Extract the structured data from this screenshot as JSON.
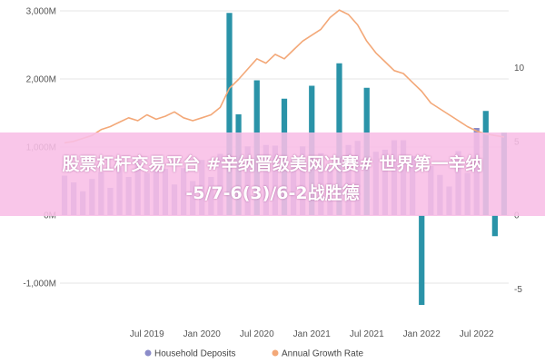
{
  "chart_data": {
    "type": "bar",
    "x": [
      "2018-10",
      "2018-11",
      "2018-12",
      "2019-01",
      "2019-02",
      "2019-03",
      "2019-04",
      "2019-05",
      "2019-06",
      "2019-07",
      "2019-08",
      "2019-09",
      "2019-10",
      "2019-11",
      "2019-12",
      "2020-01",
      "2020-02",
      "2020-03",
      "2020-04",
      "2020-05",
      "2020-06",
      "2020-07",
      "2020-08",
      "2020-09",
      "2020-10",
      "2020-11",
      "2020-12",
      "2021-01",
      "2021-02",
      "2021-03",
      "2021-04",
      "2021-05",
      "2021-06",
      "2021-07",
      "2021-08",
      "2021-09",
      "2021-10",
      "2021-11",
      "2021-12",
      "2022-01",
      "2022-02",
      "2022-03",
      "2022-04",
      "2022-05",
      "2022-06",
      "2022-07",
      "2022-08",
      "2022-09",
      "2022-10"
    ],
    "x_ticks": [
      "Jul 2019",
      "Jan 2020",
      "Jul 2020",
      "Jan 2021",
      "Jul 2021",
      "Jan 2022",
      "Jul 2022"
    ],
    "y_left": {
      "ticks": [
        "3,000M",
        "2,000M",
        "1,000M",
        "0M",
        "-1,000M"
      ],
      "range": [
        -1500,
        3000
      ]
    },
    "y_right": {
      "ticks": [
        "10",
        "5",
        "0",
        "-5"
      ],
      "range": [
        -7.5,
        14
      ]
    },
    "series": [
      {
        "name": "Household Deposits",
        "kind": "bar",
        "color": "#8b8cc9",
        "highlight_color": "#2a93a8",
        "values": [
          580,
          480,
          350,
          530,
          630,
          400,
          700,
          560,
          820,
          620,
          650,
          680,
          450,
          690,
          500,
          810,
          560,
          900,
          2970,
          1480,
          1010,
          1980,
          1030,
          1020,
          1710,
          840,
          1010,
          1900,
          910,
          710,
          2230,
          1030,
          1090,
          1870,
          930,
          960,
          1100,
          1100,
          870,
          -1320,
          720,
          590,
          420,
          940,
          620,
          1280,
          1530,
          -310,
          1210
        ],
        "highlighted": [
          false,
          false,
          false,
          false,
          false,
          false,
          false,
          false,
          false,
          false,
          false,
          false,
          false,
          false,
          false,
          false,
          false,
          false,
          true,
          true,
          false,
          true,
          false,
          false,
          true,
          false,
          false,
          true,
          false,
          false,
          true,
          false,
          false,
          true,
          false,
          false,
          false,
          false,
          false,
          true,
          false,
          false,
          false,
          false,
          false,
          false,
          true,
          true,
          true
        ]
      },
      {
        "name": "Annual Growth Rate",
        "kind": "line",
        "color": "#f3a878",
        "values": [
          4.9,
          5.0,
          5.2,
          5.4,
          5.8,
          6.0,
          6.3,
          6.6,
          6.4,
          6.8,
          6.5,
          6.7,
          7.0,
          6.6,
          6.4,
          6.6,
          6.8,
          7.3,
          8.6,
          9.2,
          9.9,
          10.6,
          10.3,
          10.9,
          10.6,
          11.2,
          11.8,
          12.2,
          12.6,
          13.4,
          13.9,
          13.6,
          12.9,
          11.8,
          11.0,
          10.4,
          9.8,
          9.6,
          9.0,
          8.4,
          7.6,
          7.2,
          6.8,
          6.4,
          6.0,
          5.7,
          5.5,
          5.4,
          5.3
        ]
      }
    ],
    "legend": {
      "position": "bottom",
      "entries": [
        "Household Deposits",
        "Annual Growth Rate"
      ]
    },
    "grid": true
  },
  "overlay": {
    "line1": "股票杠杆交易平台 #辛纳晋级美网决赛# 世界第一辛纳",
    "line2": "-5/7-6(3)/6-2战胜德"
  }
}
